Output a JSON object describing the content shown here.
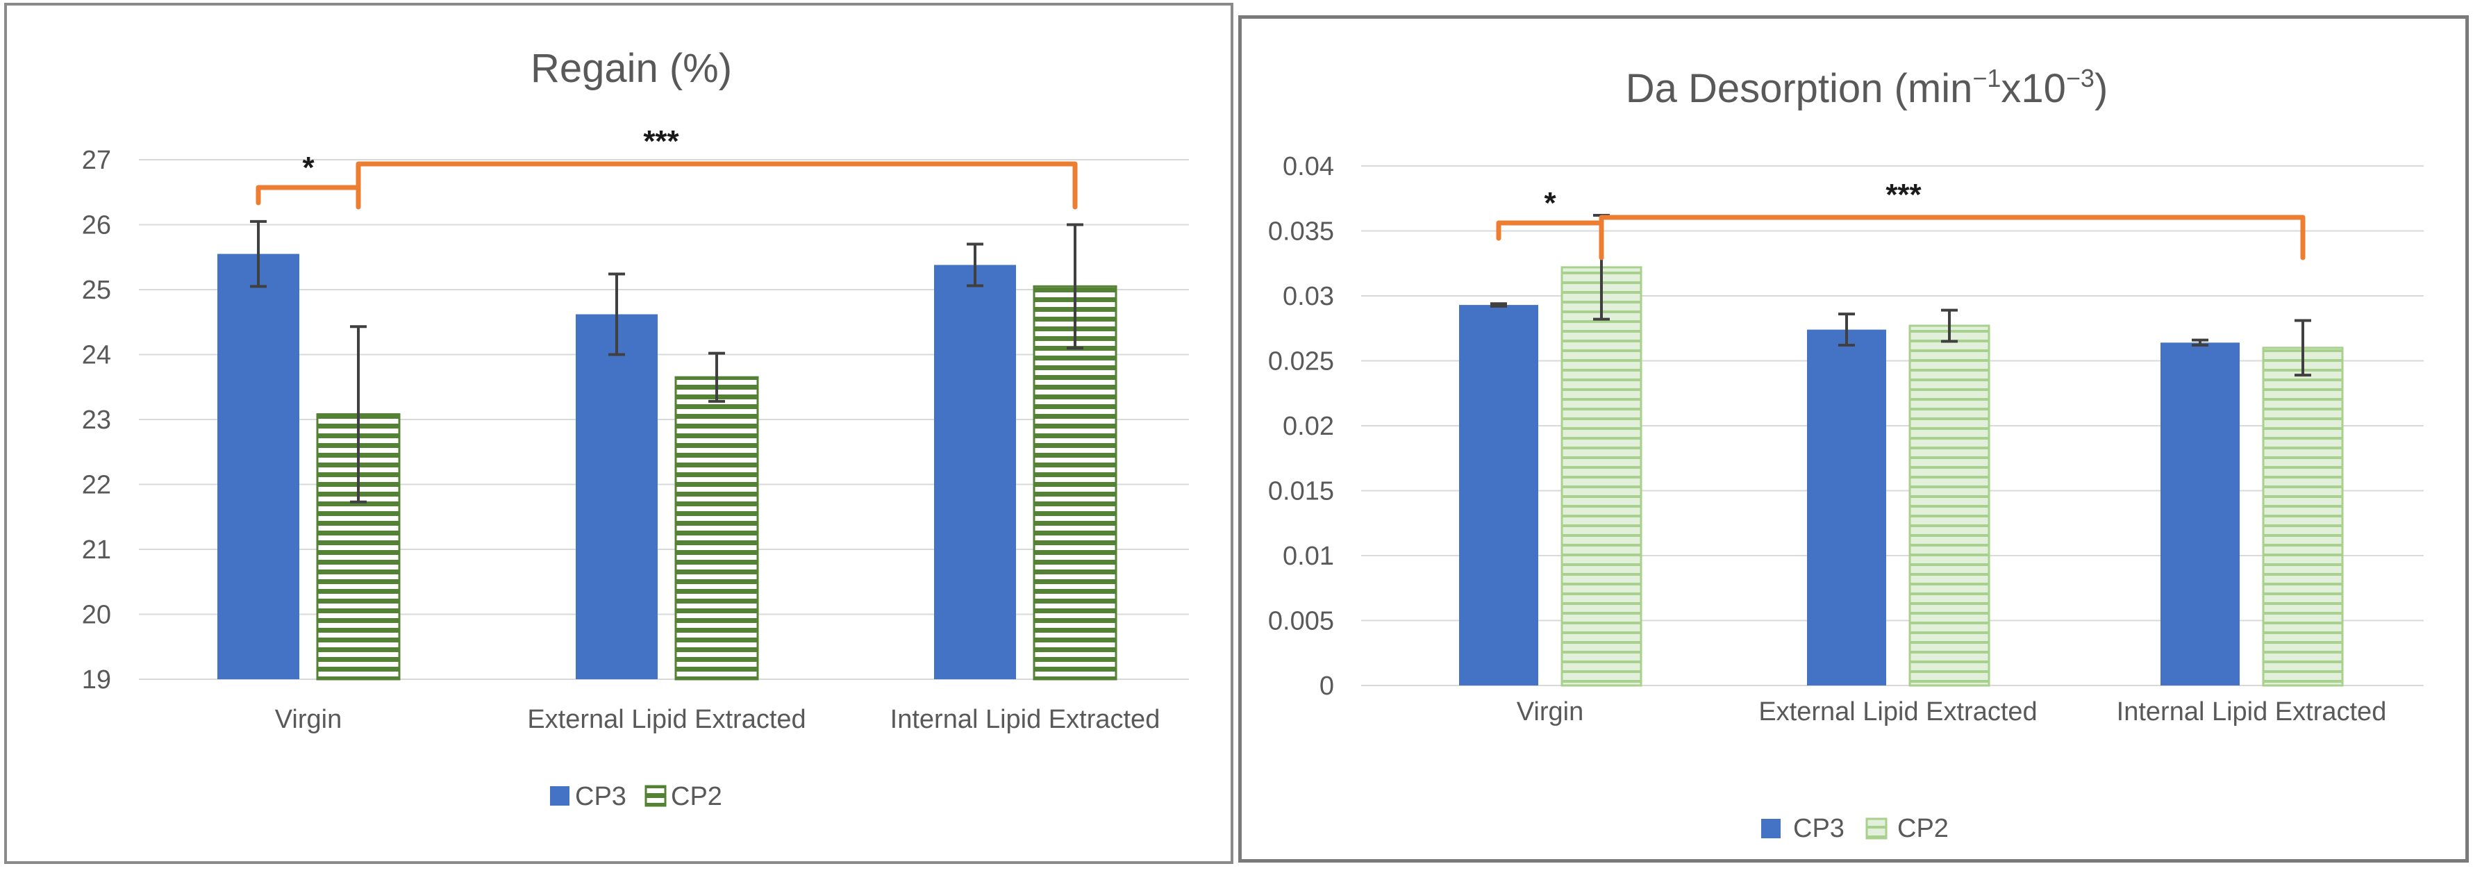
{
  "colors": {
    "cp3_fill": "#4472c4",
    "cp2_stripe_left": "#548235",
    "cp2_stripe_right": "#a9d18e",
    "cp2_bg_right": "#e2efda",
    "bracket": "#ed7d31",
    "grid": "#d9d9d9",
    "text": "#595959"
  },
  "chart_data": [
    {
      "type": "bar",
      "title": "Regain (%)",
      "categories": [
        "Virgin",
        "External Lipid Extracted",
        "Internal Lipid Extracted"
      ],
      "series": [
        {
          "name": "CP3",
          "values": [
            25.55,
            24.62,
            25.38
          ],
          "errors": [
            0.5,
            0.62,
            0.32
          ]
        },
        {
          "name": "CP2",
          "values": [
            23.08,
            23.65,
            25.05
          ],
          "errors": [
            1.35,
            0.37,
            0.95
          ]
        }
      ],
      "ylim": [
        19,
        27
      ],
      "yticks": [
        "19",
        "20",
        "21",
        "22",
        "23",
        "24",
        "25",
        "26",
        "27"
      ],
      "xlabel": "",
      "ylabel": "",
      "legend": "bottom",
      "grid": true,
      "annotations": [
        {
          "label": "*",
          "from": "Virgin CP3",
          "to": "Virgin CP2"
        },
        {
          "label": "***",
          "from": "Virgin CP2",
          "to": "Internal Lipid Extracted CP2"
        }
      ]
    },
    {
      "type": "bar",
      "title_main": "Da Desorption (min",
      "title_sup1": "−1",
      "title_mid": "x10",
      "title_sup2": "−3",
      "title_end": ")",
      "categories": [
        "Virgin",
        "External Lipid Extracted",
        "Internal Lipid Extracted"
      ],
      "series": [
        {
          "name": "CP3",
          "values": [
            0.0293,
            0.0274,
            0.0264
          ],
          "errors": [
            0.0001,
            0.0012,
            0.0002
          ]
        },
        {
          "name": "CP2",
          "values": [
            0.0322,
            0.0277,
            0.026
          ],
          "errors": [
            0.004,
            0.0012,
            0.0021
          ]
        }
      ],
      "ylim": [
        0,
        0.04
      ],
      "yticks": [
        "0",
        "0.005",
        "0.01",
        "0.015",
        "0.02",
        "0.025",
        "0.03",
        "0.035",
        "0.04"
      ],
      "xlabel": "",
      "ylabel": "",
      "legend": "bottom",
      "grid": true,
      "annotations": [
        {
          "label": "*",
          "from": "Virgin CP3",
          "to": "Virgin CP2"
        },
        {
          "label": "***",
          "from": "Virgin CP2",
          "to": "Internal Lipid Extracted CP2"
        }
      ]
    }
  ]
}
